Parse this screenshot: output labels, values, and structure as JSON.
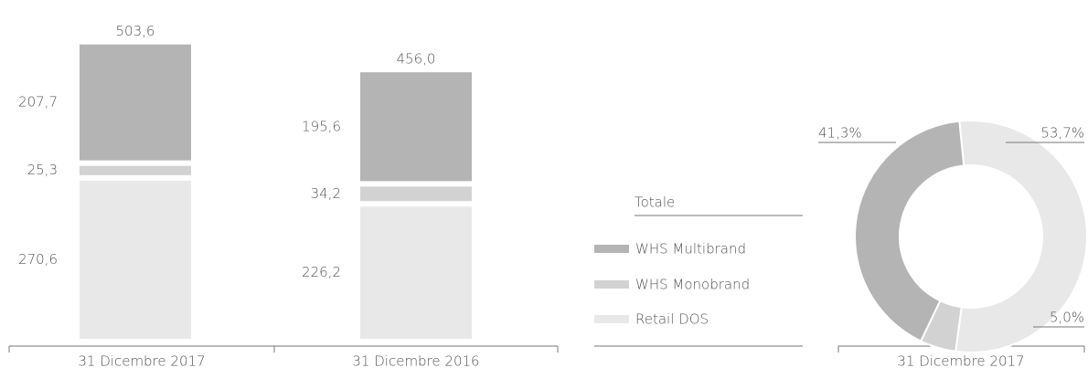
{
  "chart_data": [
    {
      "type": "stacked_bar",
      "categories": [
        "31 Dicembre 2017",
        "31 Dicembre 2016"
      ],
      "series": [
        {
          "name": "Retail DOS",
          "color": "#e8e8e8",
          "values": [
            270.6,
            226.2
          ],
          "value_labels": [
            "270,6",
            "226,2"
          ]
        },
        {
          "name": "WHS Monobrand",
          "color": "#d2d2d2",
          "values": [
            25.3,
            34.2
          ],
          "value_labels": [
            "25,3",
            "34,2"
          ]
        },
        {
          "name": "WHS Multibrand",
          "color": "#b4b4b4",
          "values": [
            207.7,
            195.6
          ],
          "value_labels": [
            "207,7",
            "195,6"
          ]
        }
      ],
      "totals_name": "Totale",
      "totals": [
        503.6,
        456.0
      ],
      "totals_labels": [
        "503,6",
        "456,0"
      ]
    },
    {
      "type": "donut",
      "category": "31 Dicembre 2017",
      "values": [
        53.7,
        5.0,
        41.3
      ],
      "value_labels": [
        "53,7%",
        "5,0%",
        "41,3%"
      ],
      "colors": [
        "#e8e8e8",
        "#d2d2d2",
        "#b4b4b4"
      ]
    }
  ]
}
